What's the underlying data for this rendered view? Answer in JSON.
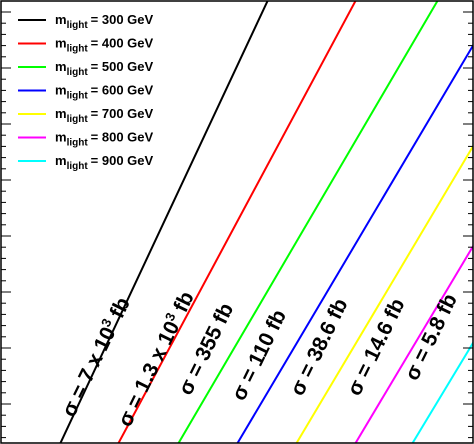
{
  "chart_data": {
    "type": "line",
    "legend_symbol": "m",
    "legend_subscript": "light",
    "series": [
      {
        "name": "= 300 GeV",
        "color": "#000000",
        "annotation": {
          "text": "σ = 7 x 10",
          "sup": "3",
          "tail": " fb"
        }
      },
      {
        "name": "= 400 GeV",
        "color": "#ff0000",
        "annotation": {
          "text": "σ = 1.3 x 10",
          "sup": "3",
          "tail": " fb"
        }
      },
      {
        "name": "= 500 GeV",
        "color": "#00ff00",
        "annotation": {
          "text": "σ = 355 fb"
        }
      },
      {
        "name": "= 600 GeV",
        "color": "#0000ff",
        "annotation": {
          "text": "σ = 110 fb"
        }
      },
      {
        "name": "= 700 GeV",
        "color": "#ffff00",
        "annotation": {
          "text": "σ = 38.6 fb"
        }
      },
      {
        "name": "= 800 GeV",
        "color": "#ff00ff",
        "annotation": {
          "text": "σ = 14.6 fb"
        }
      },
      {
        "name": "= 900 GeV",
        "color": "#00ffff",
        "annotation": {
          "text": "σ = 5.8 fb"
        }
      }
    ]
  }
}
